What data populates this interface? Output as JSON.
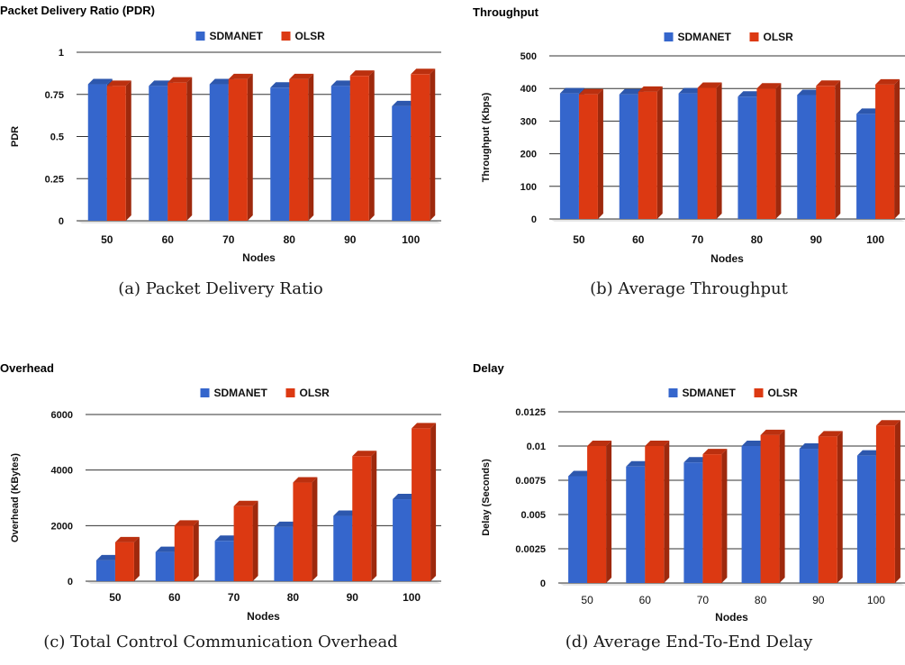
{
  "colors": {
    "sdmanet": "#3566cc",
    "olsr": "#dc3912",
    "gridline": "#333333",
    "axis_text": "#111111"
  },
  "panels": [
    {
      "caption": "(a) Packet Delivery Ratio",
      "chart_data": {
        "type": "bar",
        "title": "Packet Delivery Ratio (PDR)",
        "xlabel": "Nodes",
        "ylabel": "PDR",
        "categories": [
          "50",
          "60",
          "70",
          "80",
          "90",
          "100"
        ],
        "series": [
          {
            "name": "SDMANET",
            "values": [
              0.81,
              0.8,
              0.81,
              0.79,
              0.8,
              0.68
            ]
          },
          {
            "name": "OLSR",
            "values": [
              0.8,
              0.82,
              0.84,
              0.84,
              0.86,
              0.87
            ]
          }
        ],
        "yticks": [
          "0",
          "0.25",
          "0.5",
          "0.75",
          "1"
        ],
        "ylim": [
          0,
          1
        ],
        "legend": "top-center",
        "grid": true
      }
    },
    {
      "caption": "(b) Average Throughput",
      "chart_data": {
        "type": "bar",
        "title": "Throughput",
        "xlabel": "Nodes",
        "ylabel": "Throughput (Kbps)",
        "categories": [
          "50",
          "60",
          "70",
          "80",
          "90",
          "100"
        ],
        "series": [
          {
            "name": "SDMANET",
            "values": [
              385,
              382,
              385,
              375,
              380,
              322
            ]
          },
          {
            "name": "OLSR",
            "values": [
              382,
              390,
              402,
              400,
              408,
              412
            ]
          }
        ],
        "yticks": [
          "0",
          "100",
          "200",
          "300",
          "400",
          "500"
        ],
        "ylim": [
          0,
          500
        ],
        "legend": "top-center",
        "grid": true
      }
    },
    {
      "caption": "(c) Total Control Communication Overhead",
      "chart_data": {
        "type": "bar",
        "title": "Overhead",
        "xlabel": "Nodes",
        "ylabel": "Overhead (KBytes)",
        "categories": [
          "50",
          "60",
          "70",
          "80",
          "90",
          "100"
        ],
        "series": [
          {
            "name": "SDMANET",
            "values": [
              750,
              1050,
              1450,
              1950,
              2350,
              2950
            ]
          },
          {
            "name": "OLSR",
            "values": [
              1400,
              2000,
              2700,
              3550,
              4500,
              5500
            ]
          }
        ],
        "yticks": [
          "0",
          "2000",
          "4000",
          "6000"
        ],
        "ylim": [
          0,
          6000
        ],
        "legend": "top-center",
        "grid": true
      }
    },
    {
      "caption": "(d) Average End-To-End Delay",
      "chart_data": {
        "type": "bar",
        "title": "Delay",
        "xlabel": "Nodes",
        "ylabel": "Delay (Seconds)",
        "categories": [
          "50",
          "60",
          "70",
          "80",
          "90",
          "100"
        ],
        "series": [
          {
            "name": "SDMANET",
            "values": [
              0.0078,
              0.0085,
              0.0088,
              0.01,
              0.0098,
              0.0093
            ]
          },
          {
            "name": "OLSR",
            "values": [
              0.01,
              0.01,
              0.0094,
              0.0108,
              0.0107,
              0.0115
            ]
          }
        ],
        "yticks": [
          "0",
          "0.0025",
          "0.005",
          "0.0075",
          "0.01",
          "0.0125"
        ],
        "ylim": [
          0,
          0.0125
        ],
        "legend": "top-center",
        "grid": true
      }
    }
  ]
}
